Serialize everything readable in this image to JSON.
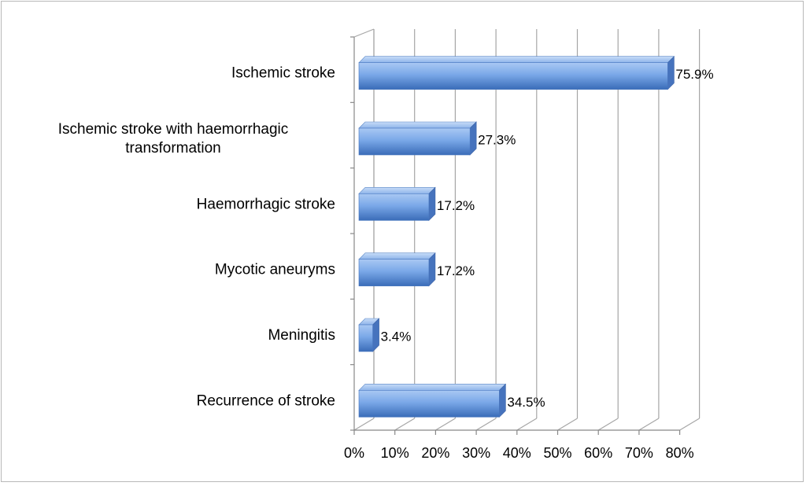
{
  "chart_data": {
    "type": "bar",
    "orientation": "horizontal",
    "style": "3d",
    "categories": [
      [
        "Ischemic stroke"
      ],
      [
        "Ischemic stroke with haemorrhagic",
        "transformation"
      ],
      [
        "Haemorrhagic stroke"
      ],
      [
        "Mycotic aneuryms"
      ],
      [
        "Meningitis"
      ],
      [
        "Recurrence of stroke"
      ]
    ],
    "values": [
      75.9,
      27.3,
      17.2,
      17.2,
      3.4,
      34.5
    ],
    "data_labels": [
      "75.9%",
      "27.3%",
      "17.2%",
      "17.2%",
      "3.4%",
      "34.5%"
    ],
    "x_ticks": [
      "0%",
      "10%",
      "20%",
      "30%",
      "40%",
      "50%",
      "60%",
      "70%",
      "80%"
    ],
    "xlim": [
      0,
      80
    ],
    "grid": true,
    "legend": "none",
    "title": "",
    "xlabel": "",
    "ylabel": "",
    "colors": {
      "bar": "#5b8fd9",
      "bar_light": "#a9c8f3",
      "bar_dark": "#3a6cb8",
      "grid": "#a6a6a6"
    }
  }
}
